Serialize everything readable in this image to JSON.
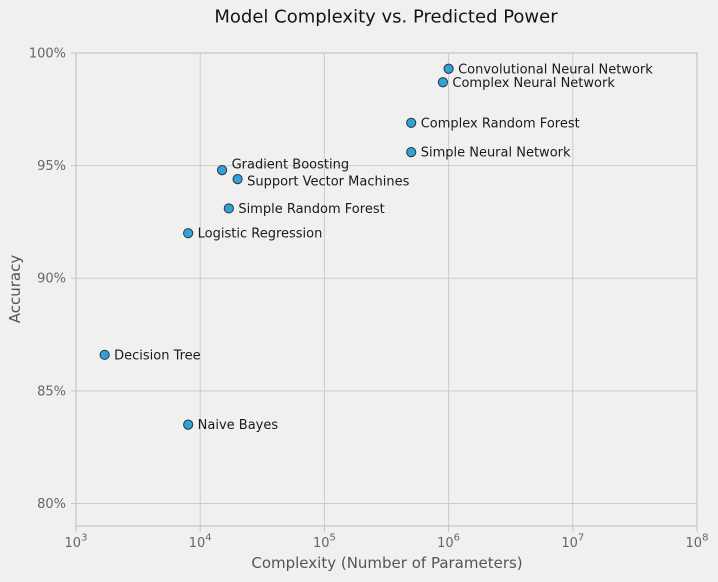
{
  "figure": {
    "background": "#f0f0f0"
  },
  "chart_data": {
    "type": "scatter",
    "title": "Model Complexity vs. Predicted Power",
    "xlabel": "Complexity (Number of Parameters)",
    "ylabel": "Accuracy",
    "x_scale": "log",
    "xlim": [
      1000,
      100000000
    ],
    "ylim": [
      79,
      100
    ],
    "x_tick_base": "10",
    "x_tick_exponents": [
      3,
      4,
      5,
      6,
      7,
      8
    ],
    "y_ticks": [
      {
        "value": 100,
        "label": "100%"
      },
      {
        "value": 95,
        "label": "95%"
      },
      {
        "value": 90,
        "label": "90%"
      },
      {
        "value": 85,
        "label": "85%"
      },
      {
        "value": 80,
        "label": "80%"
      }
    ],
    "grid": true,
    "legend": false,
    "points": [
      {
        "label": "Convolutional Neural Network",
        "params": 1000000,
        "accuracy": 99.3
      },
      {
        "label": "Complex Neural Network",
        "params": 900000,
        "accuracy": 98.7
      },
      {
        "label": "Complex Random Forest",
        "params": 500000,
        "accuracy": 96.9
      },
      {
        "label": "Simple Neural Network",
        "params": 500000,
        "accuracy": 95.6
      },
      {
        "label": "Gradient Boosting",
        "params": 15000,
        "accuracy": 94.8,
        "label_dy": -6
      },
      {
        "label": "Support Vector Machines",
        "params": 20000,
        "accuracy": 94.4,
        "label_dy": 2
      },
      {
        "label": "Simple Random Forest",
        "params": 17000,
        "accuracy": 93.1
      },
      {
        "label": "Logistic Regression",
        "params": 8000,
        "accuracy": 92.0
      },
      {
        "label": "Decision Tree",
        "params": 1700,
        "accuracy": 86.6
      },
      {
        "label": "Naive Bayes",
        "params": 8000,
        "accuracy": 83.5
      }
    ],
    "colors": {
      "background": "#f0f0f0",
      "grid": "#cbcbcb",
      "border": "#c4c4c4",
      "marker_fill": "#30a2da",
      "marker_edge": "#333333",
      "tick_label": "#666666",
      "axis_label": "#555555",
      "title": "#141414",
      "point_label": "#1a1a1a"
    }
  }
}
